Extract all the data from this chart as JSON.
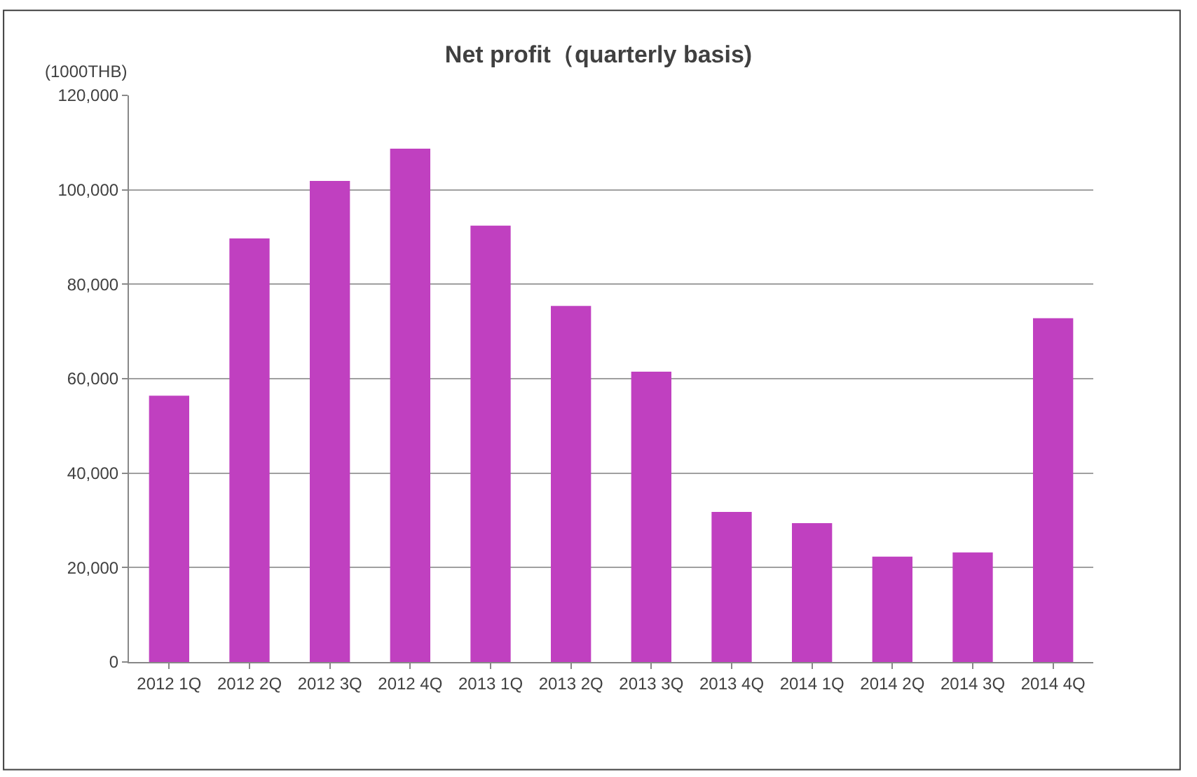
{
  "chart_data": {
    "type": "bar",
    "title": "Net profit（quarterly basis)",
    "ylabel": "(1000THB)",
    "categories": [
      "2012 1Q",
      "2012 2Q",
      "2012 3Q",
      "2012 4Q",
      "2013 1Q",
      "2013 2Q",
      "2013 3Q",
      "2013 4Q",
      "2014 1Q",
      "2014 2Q",
      "2014 3Q",
      "2014 4Q"
    ],
    "values": [
      56400,
      89700,
      101900,
      108700,
      92400,
      75400,
      61500,
      31800,
      29400,
      22300,
      23200,
      72800
    ],
    "color": "#c040c0",
    "ylim": [
      0,
      120000
    ],
    "yticks": [
      {
        "value": 0,
        "label": "0"
      },
      {
        "value": 20000,
        "label": "20,000"
      },
      {
        "value": 40000,
        "label": "40,000"
      },
      {
        "value": 60000,
        "label": "60,000"
      },
      {
        "value": 80000,
        "label": "80,000"
      },
      {
        "value": 100000,
        "label": "100,000"
      },
      {
        "value": 120000,
        "label": "120,000"
      }
    ],
    "grid": "y",
    "legend": false
  }
}
